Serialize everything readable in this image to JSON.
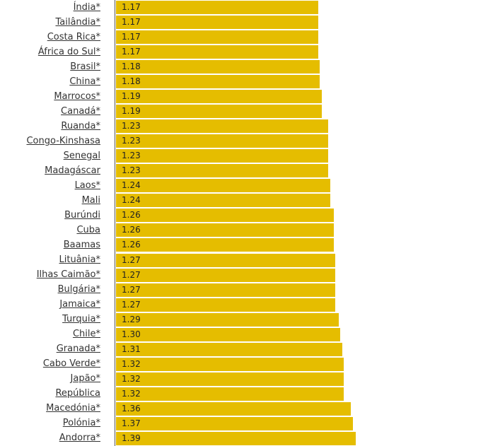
{
  "colors": {
    "bar": "#e5bd00",
    "axis": "#555555",
    "label": "#333333",
    "value": "#222222"
  },
  "chart_data": {
    "type": "bar",
    "orientation": "horizontal",
    "categories": [
      "Índia*",
      "Tailândia*",
      "Costa Rica*",
      "África do Sul*",
      "Brasil*",
      "China*",
      "Marrocos*",
      "Canadá*",
      "Ruanda*",
      "Congo-Kinshasa",
      "Senegal",
      "Madagáscar",
      "Laos*",
      "Mali",
      "Burúndi",
      "Cuba",
      "Baamas",
      "Lituânia*",
      "Ilhas Caimão*",
      "Bulgária*",
      "Jamaica*",
      "Turquia*",
      "Chile*",
      "Granada*",
      "Cabo Verde*",
      "Japão*",
      "República",
      "Macedónia*",
      "Polónia*",
      "Andorra*"
    ],
    "values": [
      1.17,
      1.17,
      1.17,
      1.17,
      1.18,
      1.18,
      1.19,
      1.19,
      1.23,
      1.23,
      1.23,
      1.23,
      1.24,
      1.24,
      1.26,
      1.26,
      1.26,
      1.27,
      1.27,
      1.27,
      1.27,
      1.29,
      1.3,
      1.31,
      1.32,
      1.32,
      1.32,
      1.36,
      1.37,
      1.39
    ],
    "value_labels": [
      "1.17",
      "1.17",
      "1.17",
      "1.17",
      "1.18",
      "1.18",
      "1.19",
      "1.19",
      "1.23",
      "1.23",
      "1.23",
      "1.23",
      "1.24",
      "1.24",
      "1.26",
      "1.26",
      "1.26",
      "1.27",
      "1.27",
      "1.27",
      "1.27",
      "1.29",
      "1.30",
      "1.31",
      "1.32",
      "1.32",
      "1.32",
      "1.36",
      "1.37",
      "1.39"
    ],
    "xlim": [
      0,
      1.8
    ],
    "grid": false,
    "legend": "none"
  }
}
